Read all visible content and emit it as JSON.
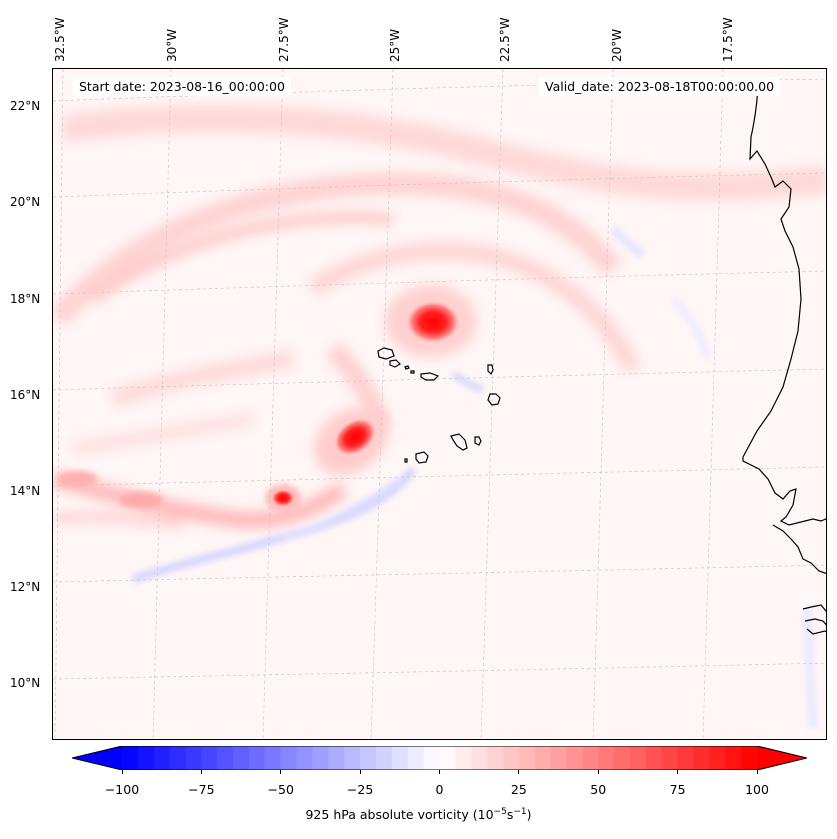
{
  "header": {
    "start_date": "Start date: 2023-08-16_00:00:00",
    "valid_date": "Valid_date: 2023-08-18T00:00:00.00"
  },
  "longitude_labels": [
    "32.5°W",
    "30°W",
    "27.5°W",
    "25°W",
    "22.5°W",
    "20°W",
    "17.5°W"
  ],
  "latitude_labels": [
    "22°N",
    "20°N",
    "18°N",
    "16°N",
    "14°N",
    "12°N",
    "10°N"
  ],
  "colorbar": {
    "ticks": [
      "−100",
      "−75",
      "−50",
      "−25",
      "0",
      "25",
      "50",
      "75",
      "100"
    ],
    "min": -100,
    "max": 100,
    "levels": 40,
    "label_main": "925 hPa absolute vorticity (10",
    "label_exp1": "−5",
    "label_mid": "s",
    "label_exp2": "−1",
    "label_end": ")",
    "colormap": "bwr",
    "extend": "both"
  },
  "map": {
    "features": [
      "Cape Verde islands",
      "West African coastline"
    ],
    "vorticity_maxima": [
      {
        "lat": 17.7,
        "lon": -24.6,
        "value": 100
      },
      {
        "lat": 15.2,
        "lon": -25.8,
        "value": 85
      },
      {
        "lat": 13.9,
        "lon": -27.9,
        "value": 80
      }
    ],
    "colors": {
      "positive": "#ff0000",
      "negative": "#0000ff",
      "coastline": "#000000",
      "gridline": "#bbbbbb"
    }
  }
}
